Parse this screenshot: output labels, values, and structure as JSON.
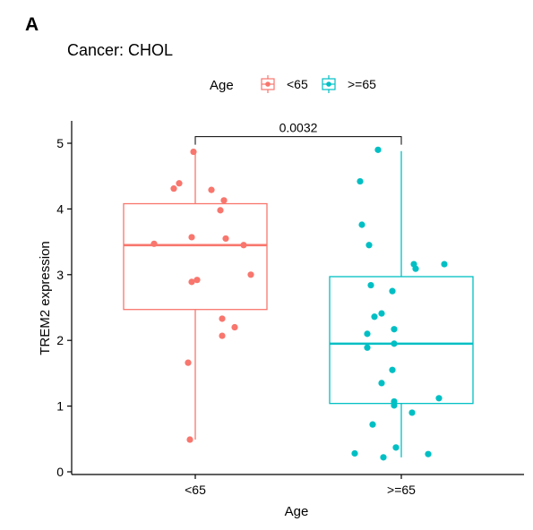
{
  "panel_label": "A",
  "chart_data": {
    "type": "box",
    "title": "Cancer: CHOL",
    "xlabel": "Age",
    "ylabel": "TREM2 expression",
    "ylim": [
      0,
      5.2
    ],
    "yticks": [
      0,
      1,
      2,
      3,
      4,
      5
    ],
    "legend": {
      "title": "Age",
      "position": "top"
    },
    "significance": {
      "label": "0.0032",
      "y": 5.1
    },
    "groups": [
      {
        "name": "<65",
        "color": "#F8766D",
        "box": {
          "q1": 2.47,
          "median": 3.45,
          "q3": 4.08,
          "whisker_low": 0.49,
          "whisker_high": 4.87
        },
        "points": [
          {
            "x": -0.01,
            "y": 4.87
          },
          {
            "x": -0.09,
            "y": 4.39
          },
          {
            "x": -0.12,
            "y": 4.31
          },
          {
            "x": 0.09,
            "y": 4.29
          },
          {
            "x": 0.16,
            "y": 4.13
          },
          {
            "x": 0.14,
            "y": 3.98
          },
          {
            "x": -0.02,
            "y": 3.57
          },
          {
            "x": 0.17,
            "y": 3.55
          },
          {
            "x": -0.23,
            "y": 3.47
          },
          {
            "x": 0.27,
            "y": 3.45
          },
          {
            "x": 0.31,
            "y": 3.0
          },
          {
            "x": 0.01,
            "y": 2.92
          },
          {
            "x": -0.02,
            "y": 2.89
          },
          {
            "x": 0.15,
            "y": 2.33
          },
          {
            "x": 0.22,
            "y": 2.2
          },
          {
            "x": 0.15,
            "y": 2.07
          },
          {
            "x": -0.04,
            "y": 1.66
          },
          {
            "x": -0.03,
            "y": 0.49
          }
        ]
      },
      {
        "name": ">=65",
        "color": "#00BFC4",
        "box": {
          "q1": 1.04,
          "median": 1.95,
          "q3": 2.97,
          "whisker_low": 0.22,
          "whisker_high": 4.88
        },
        "points": [
          {
            "x": -0.13,
            "y": 4.9
          },
          {
            "x": -0.23,
            "y": 4.42
          },
          {
            "x": -0.22,
            "y": 3.76
          },
          {
            "x": -0.18,
            "y": 3.45
          },
          {
            "x": 0.07,
            "y": 3.16
          },
          {
            "x": 0.24,
            "y": 3.16
          },
          {
            "x": 0.08,
            "y": 3.09
          },
          {
            "x": -0.17,
            "y": 2.84
          },
          {
            "x": -0.05,
            "y": 2.75
          },
          {
            "x": -0.11,
            "y": 2.41
          },
          {
            "x": -0.15,
            "y": 2.36
          },
          {
            "x": -0.04,
            "y": 2.17
          },
          {
            "x": -0.19,
            "y": 2.1
          },
          {
            "x": -0.04,
            "y": 1.95
          },
          {
            "x": -0.19,
            "y": 1.89
          },
          {
            "x": -0.05,
            "y": 1.55
          },
          {
            "x": -0.11,
            "y": 1.35
          },
          {
            "x": 0.21,
            "y": 1.12
          },
          {
            "x": -0.04,
            "y": 1.07
          },
          {
            "x": -0.04,
            "y": 1.01
          },
          {
            "x": 0.06,
            "y": 0.9
          },
          {
            "x": -0.16,
            "y": 0.72
          },
          {
            "x": -0.26,
            "y": 0.28
          },
          {
            "x": -0.03,
            "y": 0.37
          },
          {
            "x": -0.1,
            "y": 0.22
          },
          {
            "x": 0.15,
            "y": 0.27
          }
        ]
      }
    ]
  }
}
